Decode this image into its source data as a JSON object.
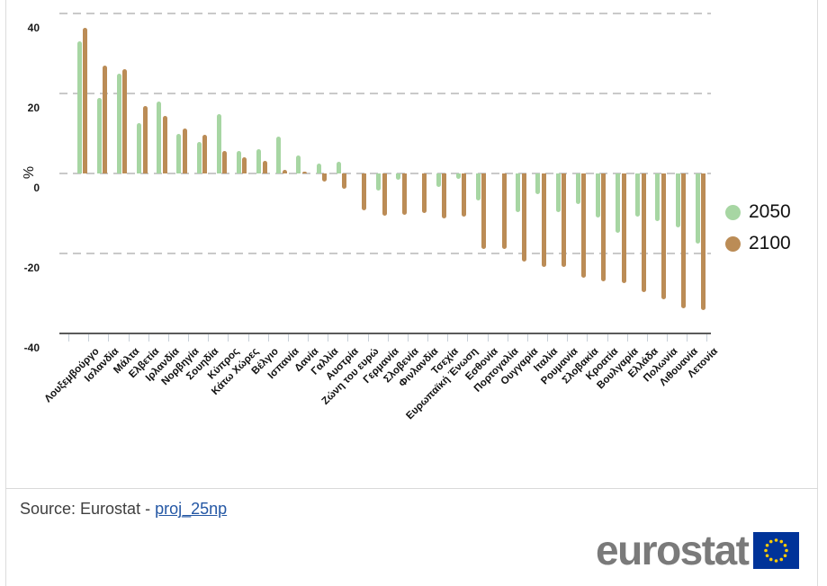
{
  "chart_data": {
    "type": "bar",
    "title": "",
    "ylabel": "%",
    "unit": "%",
    "ylim": [
      -40,
      44
    ],
    "y_ticks": [
      40,
      20,
      0,
      -20,
      -40
    ],
    "grid": "horizontal-dashed",
    "legend_position": "right",
    "categories": [
      "Λουξεμβούργο",
      "Ισλανδία",
      "Μάλτα",
      "Ελβετία",
      "Ιρλανδία",
      "Νορβηγία",
      "Σουηδία",
      "Κύπρος",
      "Κάτω Χώρες",
      "Βέλγιο",
      "Ισπανία",
      "Δανία",
      "Γαλλία",
      "Αυστρία",
      "Ζώνη του ευρώ",
      "Γερμανία",
      "Σλοβενία",
      "Φινλανδία",
      "Τσεχία",
      "Ευρωπαϊκή Ένωση",
      "Εσθονία",
      "Πορτογαλία",
      "Ουγγαρία",
      "Ιταλία",
      "Ρουμανία",
      "Σλοβακία",
      "Κροατία",
      "Βουλγαρία",
      "Ελλάδα",
      "Πολωνία",
      "Λιθουανία",
      "Λετονία"
    ],
    "series": [
      {
        "name": "2050",
        "color": "#a7d6a3",
        "values": [
          33,
          19,
          25,
          12.7,
          18,
          10,
          7.9,
          14.8,
          5.7,
          6,
          9.2,
          4.4,
          2.5,
          2.9,
          0,
          -4.2,
          -1.5,
          0,
          -3.4,
          -1.3,
          -6.7,
          0,
          -9.6,
          -5.2,
          -9.7,
          -7.7,
          -11,
          -14.8,
          -10.7,
          -11.9,
          -13.4,
          -17.5
        ]
      },
      {
        "name": "2100",
        "color": "#bb8c56",
        "values": [
          36.5,
          27,
          26,
          16.8,
          14.3,
          11.3,
          9.6,
          5.6,
          4,
          3.1,
          1,
          0.5,
          -2,
          -3.8,
          -9.3,
          -10.5,
          -10.3,
          -10,
          -11.2,
          -10.8,
          -18.8,
          -19,
          -22,
          -23.5,
          -23.5,
          -26.1,
          -26.9,
          -27.5,
          -29.7,
          -31.4,
          -33.7,
          -34.2
        ]
      }
    ]
  },
  "footer": {
    "source_prefix": "Source: Eurostat - ",
    "source_link": "proj_25np"
  },
  "branding": {
    "logo_text": "eurostat"
  }
}
